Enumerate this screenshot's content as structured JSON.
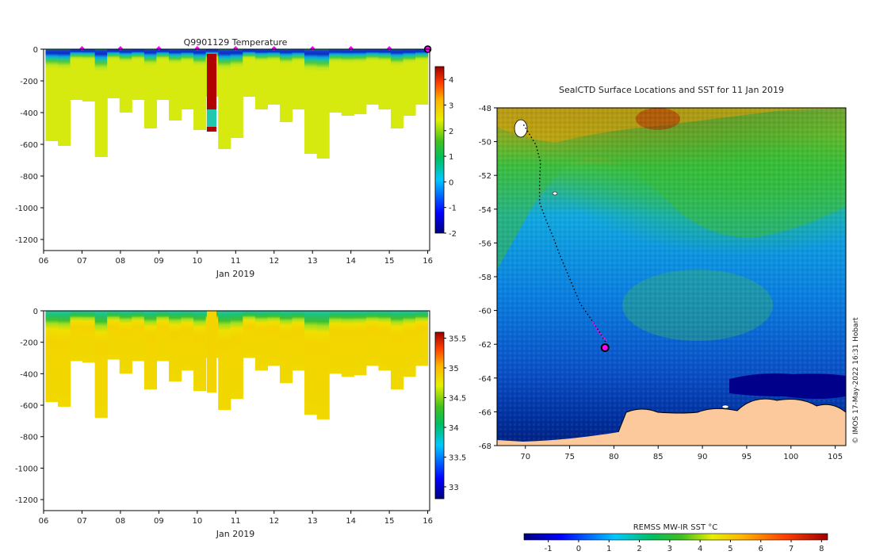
{
  "chart_data": [
    {
      "type": "heatmap",
      "name": "temperature-section",
      "title": "Q9901129  Temperature",
      "xlabel": "Jan 2019",
      "ylabel": "",
      "x_ticks": [
        "06",
        "07",
        "08",
        "09",
        "10",
        "11",
        "12",
        "13",
        "14",
        "15",
        "16"
      ],
      "x_range": [
        6,
        16.05
      ],
      "y_ticks": [
        0,
        -200,
        -400,
        -600,
        -800,
        -1000,
        -1200
      ],
      "y_range": [
        -1270,
        0
      ],
      "colorbar": {
        "min": -2,
        "max": 4.5,
        "ticks": [
          4,
          3,
          2,
          1,
          0,
          -1,
          -2
        ]
      },
      "profile_max_depth": [
        580,
        610,
        320,
        330,
        680,
        310,
        400,
        320,
        500,
        320,
        450,
        380,
        510,
        300,
        630,
        560,
        300,
        380,
        350,
        460,
        380,
        660,
        690,
        400,
        420,
        410,
        350,
        380,
        500,
        420,
        350
      ],
      "markers_x": [
        7,
        8,
        9,
        10,
        11,
        12,
        13,
        14,
        15,
        16
      ],
      "anomaly": {
        "x_start": 10.25,
        "x_end": 10.5,
        "depth": 520
      }
    },
    {
      "type": "heatmap",
      "name": "salinity-section",
      "title": "",
      "xlabel": "Jan 2019",
      "ylabel": "",
      "x_ticks": [
        "06",
        "07",
        "08",
        "09",
        "10",
        "11",
        "12",
        "13",
        "14",
        "15",
        "16"
      ],
      "x_range": [
        6,
        16.05
      ],
      "y_ticks": [
        0,
        -200,
        -400,
        -600,
        -800,
        -1000,
        -1200
      ],
      "y_range": [
        -1270,
        0
      ],
      "colorbar": {
        "min": 32.8,
        "max": 35.6,
        "ticks": [
          35.5,
          35,
          34.5,
          34,
          33.5,
          33
        ]
      },
      "profile_max_depth": [
        580,
        610,
        320,
        330,
        680,
        310,
        400,
        320,
        500,
        320,
        450,
        380,
        510,
        300,
        630,
        560,
        300,
        380,
        350,
        460,
        380,
        660,
        690,
        400,
        420,
        410,
        350,
        380,
        500,
        420,
        350
      ]
    },
    {
      "type": "heatmap",
      "name": "sst-map",
      "title": "SealCTD Surface Locations and SST for 11 Jan 2019",
      "x_ticks": [
        70,
        75,
        80,
        85,
        90,
        95,
        100,
        105
      ],
      "x_range": [
        66.8,
        106.2
      ],
      "y_ticks": [
        -48,
        -50,
        -52,
        -54,
        -56,
        -58,
        -60,
        -62,
        -64,
        -66,
        -68
      ],
      "y_range": [
        -68,
        -48
      ],
      "track": [
        [
          69.8,
          -49.0
        ],
        [
          70.5,
          -49.6
        ],
        [
          71.2,
          -50.2
        ],
        [
          71.7,
          -51.2
        ],
        [
          71.6,
          -52.5
        ],
        [
          71.6,
          -53.6
        ],
        [
          72.3,
          -54.6
        ],
        [
          73.1,
          -55.6
        ],
        [
          73.8,
          -56.6
        ],
        [
          74.6,
          -57.6
        ],
        [
          75.4,
          -58.6
        ],
        [
          76.2,
          -59.6
        ],
        [
          77.4,
          -60.5
        ],
        [
          78.4,
          -61.3
        ],
        [
          79.1,
          -61.9
        ],
        [
          79.0,
          -62.2
        ]
      ],
      "recent_track": [
        [
          77.6,
          -60.7
        ],
        [
          78.2,
          -61.2
        ],
        [
          78.8,
          -61.6
        ],
        [
          79.2,
          -61.8
        ]
      ],
      "current_position": [
        79.0,
        -62.2
      ],
      "colorbar": {
        "label": "REMSS MW-IR SST °C",
        "min": -1.8,
        "max": 8.2,
        "ticks": [
          -1,
          0,
          1,
          2,
          3,
          4,
          5,
          6,
          7,
          8
        ]
      },
      "credit": "© IMOS 17-May-2022 16:31 Hobart"
    }
  ],
  "colors": {
    "land": "#fbc99b",
    "ice": "#00008b",
    "marker": "#ff00ff",
    "anomaly_red": "#b00000"
  }
}
